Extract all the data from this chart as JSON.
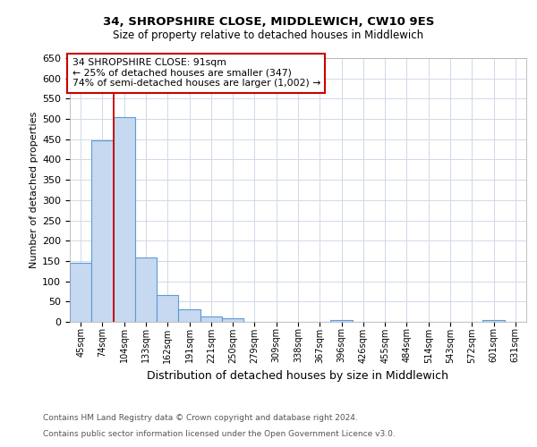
{
  "title1": "34, SHROPSHIRE CLOSE, MIDDLEWICH, CW10 9ES",
  "title2": "Size of property relative to detached houses in Middlewich",
  "xlabel": "Distribution of detached houses by size in Middlewich",
  "ylabel": "Number of detached properties",
  "categories": [
    "45sqm",
    "74sqm",
    "104sqm",
    "133sqm",
    "162sqm",
    "191sqm",
    "221sqm",
    "250sqm",
    "279sqm",
    "309sqm",
    "338sqm",
    "367sqm",
    "396sqm",
    "426sqm",
    "455sqm",
    "484sqm",
    "514sqm",
    "543sqm",
    "572sqm",
    "601sqm",
    "631sqm"
  ],
  "values": [
    145,
    447,
    505,
    158,
    67,
    30,
    13,
    8,
    0,
    0,
    0,
    0,
    5,
    0,
    0,
    0,
    0,
    0,
    0,
    5,
    0
  ],
  "bar_color": "#c6d9f0",
  "bar_edge_color": "#5b9bd5",
  "ylim": [
    0,
    650
  ],
  "yticks": [
    0,
    50,
    100,
    150,
    200,
    250,
    300,
    350,
    400,
    450,
    500,
    550,
    600,
    650
  ],
  "red_line_x": 1.5,
  "annotation_text": "34 SHROPSHIRE CLOSE: 91sqm\n← 25% of detached houses are smaller (347)\n74% of semi-detached houses are larger (1,002) →",
  "annotation_box_color": "#ffffff",
  "annotation_border_color": "#cc0000",
  "bg_color": "#ffffff",
  "grid_color": "#d0d8e8",
  "footer1": "Contains HM Land Registry data © Crown copyright and database right 2024.",
  "footer2": "Contains public sector information licensed under the Open Government Licence v3.0."
}
